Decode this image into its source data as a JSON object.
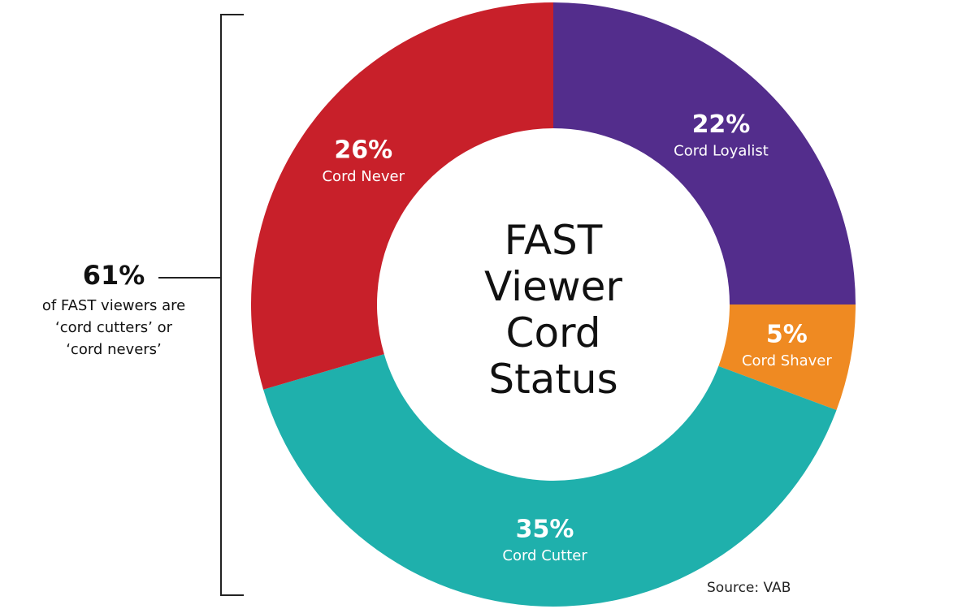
{
  "chart_data": {
    "type": "donut",
    "title": "FAST Viewer Cord Status",
    "categories": [
      "Cord Loyalist",
      "Cord Shaver",
      "Cord Cutter",
      "Cord Never"
    ],
    "values": [
      22,
      5,
      35,
      26
    ],
    "value_labels": [
      "22%",
      "5%",
      "35%",
      "26%"
    ],
    "colors": [
      "#532d8c",
      "#ef8a22",
      "#1fb0ac",
      "#c8202a"
    ],
    "annotation": {
      "label": "61%",
      "text": "of FAST viewers are ‘cord cutters’ or ‘cord nevers’"
    },
    "source": "Source: VAB"
  }
}
